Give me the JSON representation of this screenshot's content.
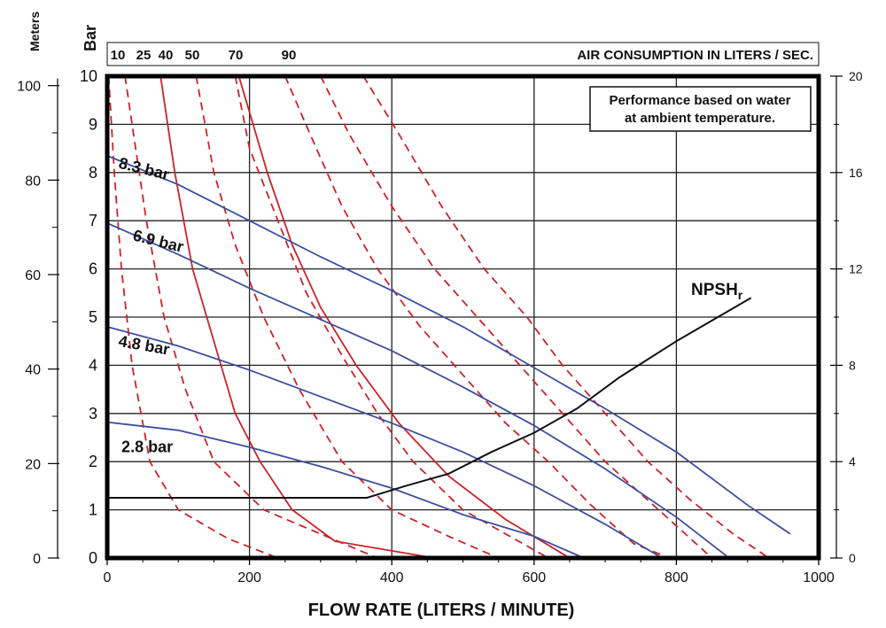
{
  "chart_data": {
    "type": "line",
    "title": "",
    "xlabel": "FLOW RATE (LITERS / MINUTE)",
    "xlim": [
      0,
      1000
    ],
    "xticks": [
      0,
      200,
      400,
      600,
      800,
      1000
    ],
    "ylabel_left_bar": "Bar",
    "ylabel_left_meters": "Meters",
    "ylim_bar": [
      0,
      10
    ],
    "yticks_bar": [
      0,
      1,
      2,
      3,
      4,
      5,
      6,
      7,
      8,
      9,
      10
    ],
    "ylim_meters": [
      0,
      102
    ],
    "yticks_meters": [
      0,
      20,
      40,
      60,
      80,
      100
    ],
    "ylim_right": [
      0,
      20
    ],
    "yticks_right": [
      0,
      4,
      8,
      12,
      16,
      20
    ],
    "air_axis_label": "AIR CONSUMPTION IN LITERS / SEC.",
    "air_curve_labels": [
      "10",
      "25",
      "40",
      "50",
      "70",
      "90"
    ],
    "note_line1": "Performance based on water",
    "note_line2": "at ambient temperature.",
    "npsh_label": "NPSH",
    "npsh_subscript": "r",
    "colors": {
      "pressure": "#3b4fa0",
      "air": "#cc2229",
      "npsh": "#111111",
      "grid": "#222222"
    },
    "pressure_series": [
      {
        "name": "8.3 bar",
        "points": [
          [
            0,
            8.35
          ],
          [
            100,
            7.75
          ],
          [
            200,
            7.0
          ],
          [
            300,
            6.25
          ],
          [
            400,
            5.55
          ],
          [
            500,
            4.8
          ],
          [
            600,
            3.95
          ],
          [
            700,
            3.1
          ],
          [
            800,
            2.2
          ],
          [
            900,
            1.1
          ],
          [
            960,
            0.5
          ]
        ]
      },
      {
        "name": "6.9 bar",
        "points": [
          [
            0,
            6.95
          ],
          [
            100,
            6.3
          ],
          [
            200,
            5.6
          ],
          [
            300,
            4.95
          ],
          [
            400,
            4.3
          ],
          [
            500,
            3.55
          ],
          [
            600,
            2.75
          ],
          [
            700,
            1.85
          ],
          [
            800,
            0.85
          ],
          [
            870,
            0.05
          ]
        ]
      },
      {
        "name": "4.8 bar",
        "points": [
          [
            0,
            4.8
          ],
          [
            100,
            4.4
          ],
          [
            200,
            3.9
          ],
          [
            300,
            3.35
          ],
          [
            400,
            2.8
          ],
          [
            500,
            2.2
          ],
          [
            600,
            1.5
          ],
          [
            700,
            0.7
          ],
          [
            780,
            0
          ]
        ]
      },
      {
        "name": "2.8 bar",
        "points": [
          [
            0,
            2.82
          ],
          [
            100,
            2.65
          ],
          [
            200,
            2.3
          ],
          [
            300,
            1.9
          ],
          [
            400,
            1.45
          ],
          [
            500,
            0.9
          ],
          [
            600,
            0.45
          ],
          [
            670,
            0
          ]
        ]
      }
    ],
    "air_series": [
      {
        "name": "10",
        "style": "dashed",
        "points": [
          [
            2,
            10
          ],
          [
            10,
            8
          ],
          [
            20,
            6
          ],
          [
            35,
            4
          ],
          [
            60,
            2
          ],
          [
            100,
            1
          ],
          [
            170,
            0.4
          ],
          [
            240,
            0
          ]
        ]
      },
      {
        "name": "25",
        "style": "dashed",
        "points": [
          [
            25,
            10
          ],
          [
            40,
            8.5
          ],
          [
            55,
            7
          ],
          [
            80,
            5
          ],
          [
            110,
            3.5
          ],
          [
            150,
            2
          ],
          [
            220,
            1
          ],
          [
            300,
            0.5
          ],
          [
            380,
            0
          ]
        ]
      },
      {
        "name": "40",
        "style": "solid",
        "points": [
          [
            75,
            10
          ],
          [
            95,
            8
          ],
          [
            120,
            6
          ],
          [
            150,
            4.5
          ],
          [
            180,
            3
          ],
          [
            215,
            2
          ],
          [
            260,
            1
          ],
          [
            320,
            0.35
          ],
          [
            460,
            0
          ]
        ]
      },
      {
        "name": "50",
        "style": "dashed",
        "points": [
          [
            125,
            10
          ],
          [
            150,
            8
          ],
          [
            180,
            6.5
          ],
          [
            220,
            5
          ],
          [
            270,
            3.5
          ],
          [
            330,
            2
          ],
          [
            400,
            1
          ],
          [
            480,
            0.45
          ],
          [
            550,
            0
          ]
        ]
      },
      {
        "name": "70",
        "style": "dashed",
        "points": [
          [
            180,
            10
          ],
          [
            200,
            8.5
          ],
          [
            240,
            7
          ],
          [
            280,
            5.5
          ],
          [
            330,
            4.2
          ],
          [
            380,
            3
          ],
          [
            430,
            2
          ],
          [
            500,
            1
          ],
          [
            560,
            0.5
          ],
          [
            620,
            0
          ]
        ]
      },
      {
        "name": "70b",
        "style": "solid",
        "points": [
          [
            185,
            10
          ],
          [
            225,
            8
          ],
          [
            260,
            6.5
          ],
          [
            300,
            5.2
          ],
          [
            350,
            4
          ],
          [
            410,
            2.8
          ],
          [
            480,
            1.7
          ],
          [
            560,
            0.8
          ],
          [
            650,
            0
          ]
        ]
      },
      {
        "name": "90a",
        "style": "dashed",
        "points": [
          [
            250,
            10
          ],
          [
            285,
            8.8
          ],
          [
            330,
            7.3
          ],
          [
            380,
            6
          ],
          [
            440,
            4.8
          ],
          [
            500,
            3.8
          ],
          [
            560,
            2.8
          ],
          [
            620,
            2
          ],
          [
            680,
            1.1
          ],
          [
            740,
            0.3
          ],
          [
            790,
            0
          ]
        ]
      },
      {
        "name": "90b",
        "style": "dashed",
        "points": [
          [
            300,
            10
          ],
          [
            340,
            8.8
          ],
          [
            400,
            7.3
          ],
          [
            460,
            6
          ],
          [
            520,
            5
          ],
          [
            580,
            4
          ],
          [
            640,
            3
          ],
          [
            700,
            2
          ],
          [
            760,
            1.2
          ],
          [
            820,
            0.4
          ],
          [
            850,
            0
          ]
        ]
      },
      {
        "name": "90c",
        "style": "dashed",
        "points": [
          [
            360,
            10
          ],
          [
            410,
            8.8
          ],
          [
            470,
            7.3
          ],
          [
            530,
            6
          ],
          [
            590,
            5
          ],
          [
            640,
            4
          ],
          [
            700,
            3
          ],
          [
            760,
            2
          ],
          [
            820,
            1.2
          ],
          [
            880,
            0.5
          ],
          [
            930,
            0
          ]
        ]
      }
    ],
    "npsh_series": {
      "name": "NPSHr",
      "points": [
        [
          0,
          1.25
        ],
        [
          365,
          1.25
        ],
        [
          420,
          1.5
        ],
        [
          480,
          1.75
        ],
        [
          540,
          2.2
        ],
        [
          600,
          2.6
        ],
        [
          660,
          3.1
        ],
        [
          720,
          3.75
        ],
        [
          800,
          4.5
        ],
        [
          905,
          5.4
        ]
      ]
    }
  }
}
